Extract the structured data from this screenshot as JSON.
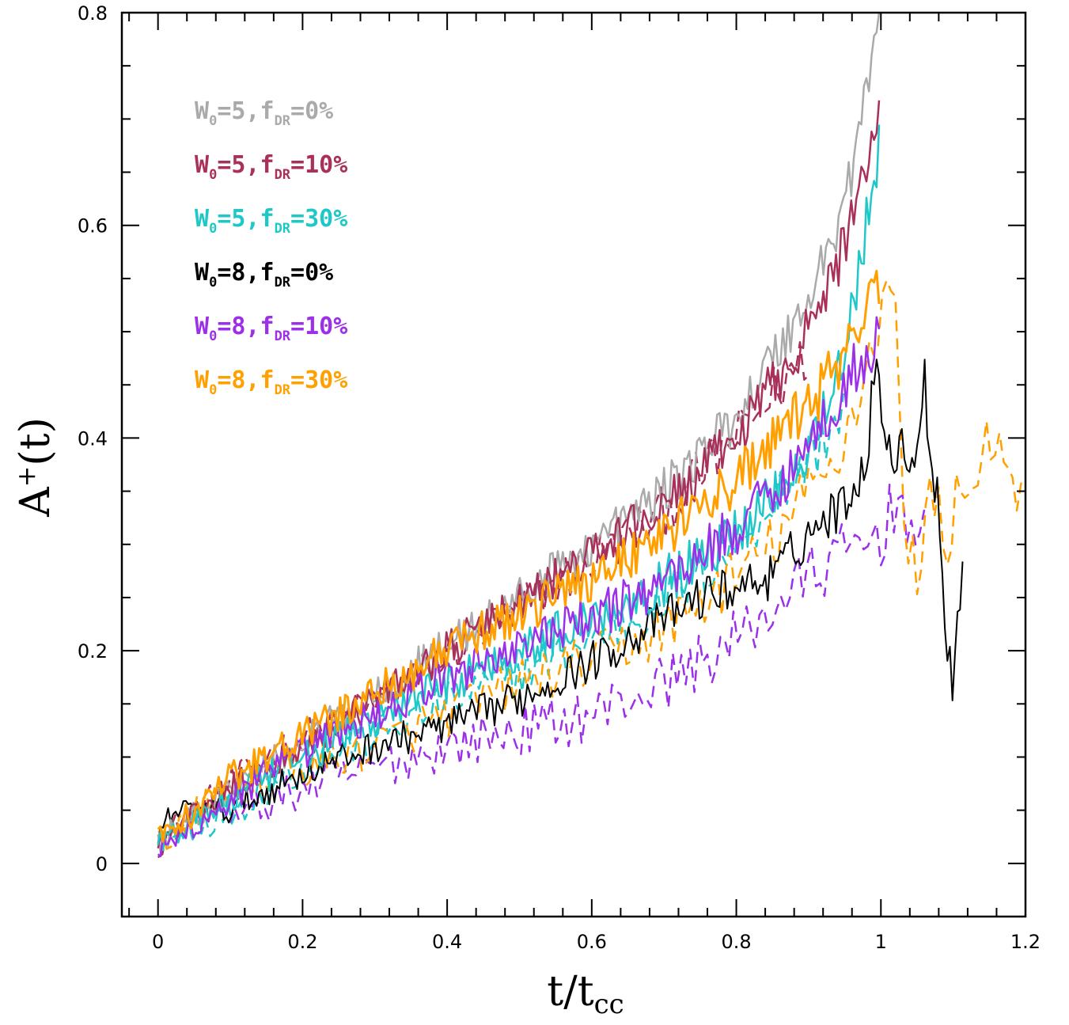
{
  "chart_data": {
    "type": "line",
    "title": "",
    "xlabel": {
      "main": "t/t",
      "sub": "cc"
    },
    "ylabel": {
      "main": "A",
      "sup": "+",
      "tail": "(t)"
    },
    "xlim": [
      -0.05,
      1.2
    ],
    "ylim": [
      -0.05,
      0.8
    ],
    "x_ticks": [
      "0",
      "0.2",
      "0.4",
      "0.6",
      "0.8",
      "1",
      "1.2"
    ],
    "x_tick_values": [
      0,
      0.2,
      0.4,
      0.6,
      0.8,
      1.0,
      1.2
    ],
    "y_ticks": [
      "0",
      "0.2",
      "0.4",
      "0.6",
      "0.8"
    ],
    "y_tick_values": [
      0,
      0.2,
      0.4,
      0.6,
      0.8
    ],
    "grid": false,
    "legend_position": "top-left",
    "series": [
      {
        "name": "W0=5,fDR=0%",
        "label": {
          "w": "W",
          "wsub": "0",
          "mid": "=5,f",
          "fsub": "DR",
          "end": "=0%"
        },
        "color": "#aaaaaa",
        "dash": false,
        "noise": 0.013,
        "points": [
          [
            0,
            0.02
          ],
          [
            0.1,
            0.07
          ],
          [
            0.2,
            0.115
          ],
          [
            0.3,
            0.16
          ],
          [
            0.4,
            0.205
          ],
          [
            0.5,
            0.25
          ],
          [
            0.6,
            0.3
          ],
          [
            0.7,
            0.35
          ],
          [
            0.8,
            0.42
          ],
          [
            0.9,
            0.53
          ],
          [
            0.95,
            0.62
          ],
          [
            1.0,
            0.8
          ]
        ]
      },
      {
        "name": "W0=5,fDR=10%",
        "label": {
          "w": "W",
          "wsub": "0",
          "mid": "=5,f",
          "fsub": "DR",
          "end": "=10%"
        },
        "color": "#a8305a",
        "dash": false,
        "noise": 0.013,
        "points": [
          [
            0,
            0.02
          ],
          [
            0.1,
            0.07
          ],
          [
            0.2,
            0.11
          ],
          [
            0.3,
            0.155
          ],
          [
            0.4,
            0.2
          ],
          [
            0.5,
            0.245
          ],
          [
            0.6,
            0.29
          ],
          [
            0.7,
            0.335
          ],
          [
            0.8,
            0.4
          ],
          [
            0.9,
            0.5
          ],
          [
            0.95,
            0.58
          ],
          [
            1.0,
            0.72
          ]
        ]
      },
      {
        "name": "W0=5,fDR=30%",
        "label": {
          "w": "W",
          "wsub": "0",
          "mid": "=5,f",
          "fsub": "DR",
          "end": "=30%"
        },
        "color": "#1ec8c8",
        "dash": false,
        "noise": 0.014,
        "points": [
          [
            0,
            0.02
          ],
          [
            0.1,
            0.06
          ],
          [
            0.2,
            0.1
          ],
          [
            0.3,
            0.135
          ],
          [
            0.4,
            0.17
          ],
          [
            0.5,
            0.2
          ],
          [
            0.6,
            0.23
          ],
          [
            0.7,
            0.265
          ],
          [
            0.8,
            0.31
          ],
          [
            0.9,
            0.39
          ],
          [
            0.95,
            0.48
          ],
          [
            1.0,
            0.68
          ]
        ]
      },
      {
        "name": "W0=8,fDR=0%",
        "label": {
          "w": "W",
          "wsub": "0",
          "mid": "=8,f",
          "fsub": "DR",
          "end": "=0%"
        },
        "color": "#000000",
        "dash": false,
        "noise": 0.012,
        "width": 2,
        "points": [
          [
            0,
            0.02
          ],
          [
            0.02,
            0.05
          ],
          [
            0.1,
            0.05
          ],
          [
            0.2,
            0.085
          ],
          [
            0.3,
            0.11
          ],
          [
            0.4,
            0.13
          ],
          [
            0.5,
            0.155
          ],
          [
            0.6,
            0.19
          ],
          [
            0.7,
            0.23
          ],
          [
            0.75,
            0.25
          ],
          [
            0.8,
            0.26
          ],
          [
            0.85,
            0.27
          ],
          [
            0.9,
            0.31
          ],
          [
            0.95,
            0.34
          ],
          [
            0.98,
            0.38
          ],
          [
            0.99,
            0.46
          ],
          [
            1.0,
            0.44
          ],
          [
            1.02,
            0.37
          ],
          [
            1.03,
            0.39
          ],
          [
            1.05,
            0.385
          ],
          [
            1.06,
            0.46
          ],
          [
            1.07,
            0.37
          ],
          [
            1.08,
            0.35
          ],
          [
            1.09,
            0.21
          ],
          [
            1.1,
            0.17
          ],
          [
            1.11,
            0.26
          ],
          [
            1.115,
            0.3
          ]
        ]
      },
      {
        "name": "W0=8,fDR=10%",
        "label": {
          "w": "W",
          "wsub": "0",
          "mid": "=8,f",
          "fsub": "DR",
          "end": "=10%"
        },
        "color": "#9b30e8",
        "dash": false,
        "noise": 0.014,
        "points": [
          [
            0,
            0.01
          ],
          [
            0.1,
            0.06
          ],
          [
            0.2,
            0.105
          ],
          [
            0.3,
            0.14
          ],
          [
            0.4,
            0.175
          ],
          [
            0.5,
            0.205
          ],
          [
            0.6,
            0.23
          ],
          [
            0.7,
            0.265
          ],
          [
            0.8,
            0.315
          ],
          [
            0.9,
            0.39
          ],
          [
            0.95,
            0.45
          ],
          [
            1.0,
            0.5
          ]
        ]
      },
      {
        "name": "W0=8,fDR=30%",
        "label": {
          "w": "W",
          "wsub": "0",
          "mid": "=8,f",
          "fsub": "DR",
          "end": "=30%"
        },
        "color": "#ffa000",
        "dash": false,
        "noise": 0.014,
        "width": 3,
        "points": [
          [
            0,
            0.02
          ],
          [
            0.1,
            0.08
          ],
          [
            0.2,
            0.12
          ],
          [
            0.3,
            0.16
          ],
          [
            0.4,
            0.2
          ],
          [
            0.5,
            0.235
          ],
          [
            0.6,
            0.27
          ],
          [
            0.7,
            0.31
          ],
          [
            0.8,
            0.36
          ],
          [
            0.9,
            0.43
          ],
          [
            0.95,
            0.48
          ],
          [
            1.0,
            0.55
          ]
        ]
      },
      {
        "name": "",
        "color": "#a8305a",
        "dash": true,
        "noise": 0.015,
        "points": [
          [
            0,
            0.02
          ],
          [
            0.15,
            0.1
          ],
          [
            0.3,
            0.15
          ],
          [
            0.5,
            0.24
          ],
          [
            0.7,
            0.33
          ],
          [
            0.8,
            0.4
          ],
          [
            0.9,
            0.48
          ]
        ]
      },
      {
        "name": "",
        "color": "#1ec8c8",
        "dash": true,
        "noise": 0.015,
        "points": [
          [
            0,
            0.02
          ],
          [
            0.1,
            0.05
          ],
          [
            0.2,
            0.09
          ],
          [
            0.3,
            0.12
          ],
          [
            0.4,
            0.15
          ],
          [
            0.5,
            0.18
          ],
          [
            0.6,
            0.21
          ],
          [
            0.7,
            0.245
          ],
          [
            0.8,
            0.3
          ],
          [
            0.9,
            0.38
          ],
          [
            0.95,
            0.43
          ]
        ]
      },
      {
        "name": "",
        "color": "#9b30e8",
        "dash": true,
        "noise": 0.016,
        "points": [
          [
            0.1,
            0.04
          ],
          [
            0.2,
            0.07
          ],
          [
            0.3,
            0.09
          ],
          [
            0.4,
            0.11
          ],
          [
            0.5,
            0.125
          ],
          [
            0.6,
            0.14
          ],
          [
            0.7,
            0.17
          ],
          [
            0.8,
            0.21
          ],
          [
            0.85,
            0.24
          ],
          [
            0.9,
            0.27
          ],
          [
            0.95,
            0.29
          ],
          [
            1.0,
            0.31
          ],
          [
            1.03,
            0.35
          ],
          [
            1.05,
            0.29
          ],
          [
            1.06,
            0.3
          ]
        ]
      },
      {
        "name": "",
        "color": "#ffa000",
        "dash": true,
        "noise": 0.016,
        "points": [
          [
            0,
            0.02
          ],
          [
            0.1,
            0.07
          ],
          [
            0.2,
            0.09
          ],
          [
            0.3,
            0.11
          ],
          [
            0.4,
            0.14
          ],
          [
            0.5,
            0.17
          ],
          [
            0.6,
            0.19
          ],
          [
            0.7,
            0.22
          ],
          [
            0.8,
            0.27
          ],
          [
            0.85,
            0.3
          ],
          [
            0.9,
            0.35
          ],
          [
            0.93,
            0.37
          ],
          [
            0.96,
            0.42
          ],
          [
            0.99,
            0.49
          ],
          [
            1.0,
            0.53
          ],
          [
            1.02,
            0.54
          ],
          [
            1.03,
            0.31
          ],
          [
            1.05,
            0.28
          ],
          [
            1.07,
            0.35
          ],
          [
            1.09,
            0.3
          ],
          [
            1.11,
            0.36
          ],
          [
            1.13,
            0.35
          ],
          [
            1.15,
            0.42
          ],
          [
            1.17,
            0.35
          ],
          [
            1.19,
            0.35
          ],
          [
            1.2,
            0.34
          ]
        ]
      }
    ]
  }
}
